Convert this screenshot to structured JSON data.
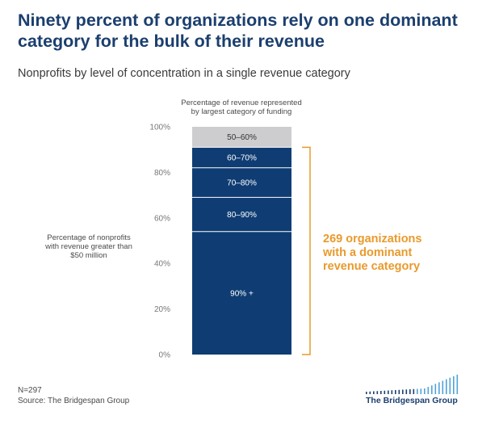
{
  "title": "Ninety percent of organizations rely on one dominant category for the bulk of their revenue",
  "subtitle": "Nonprofits by level of concentration in a single revenue category",
  "footer": {
    "n": "N=297",
    "source": "Source: The Bridgespan Group"
  },
  "logo": {
    "text": "The Bridgespan Group"
  },
  "colors": {
    "navy": "#0f3d73",
    "grey": "#cdcdd0",
    "orange": "#e99a2c",
    "title": "#1b3f6e"
  },
  "chart_data": {
    "type": "bar",
    "stacked": true,
    "x_label_lines": [
      "Percentage of revenue represented",
      "by largest category of funding"
    ],
    "y_label_lines": [
      "Percentage of nonprofits",
      "with revenue greater than",
      "$50 million"
    ],
    "ylim": [
      0,
      100
    ],
    "y_ticks": [
      "0%",
      "20%",
      "40%",
      "60%",
      "80%",
      "100%"
    ],
    "segments": [
      {
        "name": "90% +",
        "value": 54
      },
      {
        "name": "80–90%",
        "value": 15
      },
      {
        "name": "70–80%",
        "value": 13
      },
      {
        "name": "60–70%",
        "value": 9
      },
      {
        "name": "50–60%",
        "value": 9
      }
    ],
    "annotation_lines": [
      "269 organizations",
      "with a dominant",
      "revenue category"
    ],
    "bracket_range": [
      0,
      91
    ]
  }
}
